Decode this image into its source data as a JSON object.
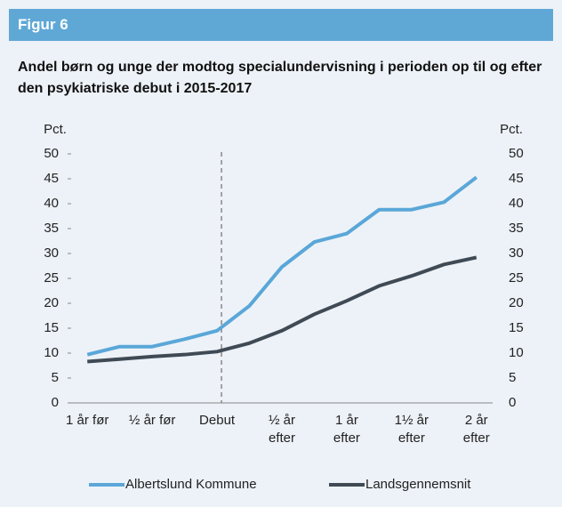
{
  "header": "Figur 6",
  "chart_data": {
    "type": "line",
    "title": "Andel børn og unge der modtog specialundervisning i perioden op til og efter den psykiatriske debut i 2015-2017",
    "ylabel": "Pct.",
    "y2label": "Pct.",
    "categories": [
      "1 år før",
      null,
      "½ år før",
      null,
      "Debut",
      null,
      "½ år\nefter",
      null,
      "1 år\nefter",
      null,
      "1½ år\nefter",
      null,
      "2 år\nefter"
    ],
    "series": [
      {
        "name": "Albertslund Kommune",
        "color": "#5aa7d8",
        "values": [
          9.7,
          11.3,
          11.3,
          12.8,
          14.5,
          19.5,
          27.3,
          32.3,
          34,
          38.8,
          38.8,
          40.3,
          45.3
        ]
      },
      {
        "name": "Landsgennemsnit",
        "color": "#3f4a55",
        "values": [
          8.3,
          8.8,
          9.3,
          9.7,
          10.3,
          12,
          14.5,
          17.8,
          20.5,
          23.5,
          25.5,
          27.8,
          29.2
        ]
      }
    ],
    "vline_at": 4,
    "ylim": [
      0,
      50
    ],
    "yticks": [
      0,
      5,
      10,
      15,
      20,
      25,
      30,
      35,
      40,
      45,
      50
    ],
    "y2lim": [
      0,
      50
    ],
    "y2ticks": [
      0,
      5,
      10,
      15,
      20,
      25,
      30,
      35,
      40,
      45,
      50
    ],
    "legend": "bottom"
  }
}
